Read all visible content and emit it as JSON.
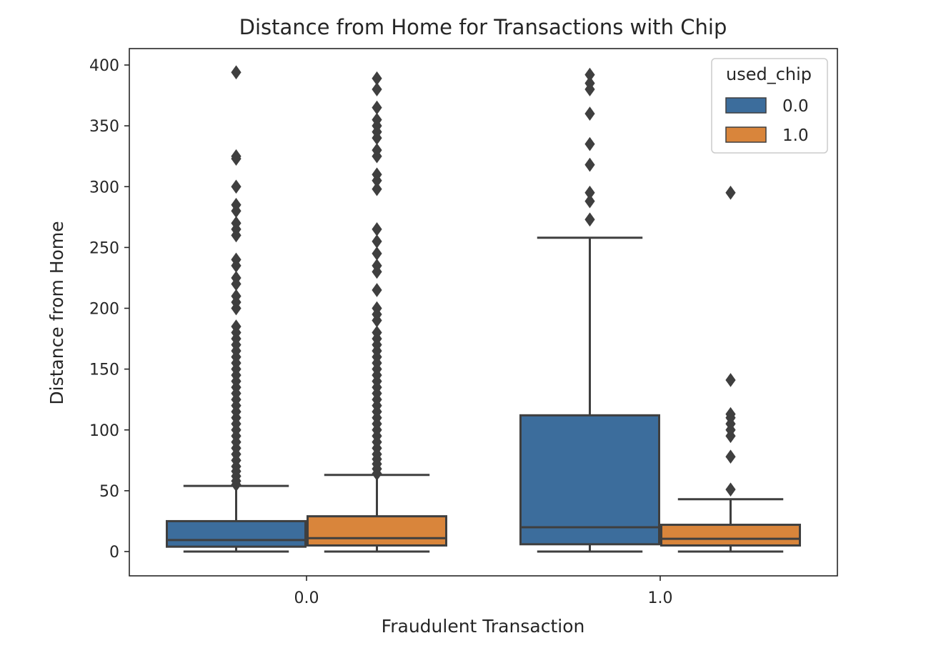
{
  "chart_data": {
    "type": "box",
    "title": "Distance from Home for Transactions with Chip",
    "xlabel": "Fraudulent Transaction",
    "ylabel": "Distance from Home",
    "categories": [
      "0.0",
      "1.0"
    ],
    "ylim": [
      -20,
      410
    ],
    "yticks": [
      0,
      50,
      100,
      150,
      200,
      250,
      300,
      350,
      400
    ],
    "grid": false,
    "legend": {
      "title": "used_chip",
      "placement": "top-right",
      "entries": [
        "0.0",
        "1.0"
      ]
    },
    "series": [
      {
        "name": "0.0",
        "color": "#3c6d9c",
        "boxes": [
          {
            "category": "0.0",
            "whislo": 0,
            "q1": 4,
            "median": 9.5,
            "q3": 25,
            "whishi": 54,
            "fliers": [
              55,
              58,
              62,
              66,
              70,
              75,
              80,
              85,
              90,
              95,
              100,
              105,
              110,
              115,
              120,
              125,
              130,
              135,
              140,
              145,
              150,
              155,
              160,
              165,
              170,
              175,
              180,
              185,
              200,
              205,
              210,
              220,
              225,
              235,
              240,
              260,
              265,
              270,
              280,
              285,
              300,
              323,
              325,
              394
            ]
          },
          {
            "category": "1.0",
            "whislo": 0,
            "q1": 6,
            "median": 20,
            "q3": 112,
            "whishi": 258,
            "fliers": [
              273,
              288,
              295,
              318,
              335,
              360,
              380,
              385,
              392
            ]
          }
        ]
      },
      {
        "name": "1.0",
        "color": "#d9853b",
        "boxes": [
          {
            "category": "0.0",
            "whislo": 0,
            "q1": 5,
            "median": 11,
            "q3": 29,
            "whishi": 63,
            "fliers": [
              64,
              68,
              72,
              76,
              80,
              85,
              90,
              95,
              100,
              105,
              110,
              115,
              120,
              125,
              130,
              135,
              140,
              145,
              150,
              155,
              160,
              165,
              170,
              175,
              180,
              190,
              195,
              200,
              215,
              230,
              235,
              245,
              255,
              265,
              298,
              305,
              310,
              325,
              330,
              340,
              345,
              350,
              355,
              365,
              380,
              389
            ]
          },
          {
            "category": "1.0",
            "whislo": 0,
            "q1": 5,
            "median": 10.5,
            "q3": 22,
            "whishi": 43,
            "fliers": [
              51,
              78,
              95,
              100,
              105,
              110,
              113,
              141,
              295
            ]
          }
        ]
      }
    ]
  }
}
